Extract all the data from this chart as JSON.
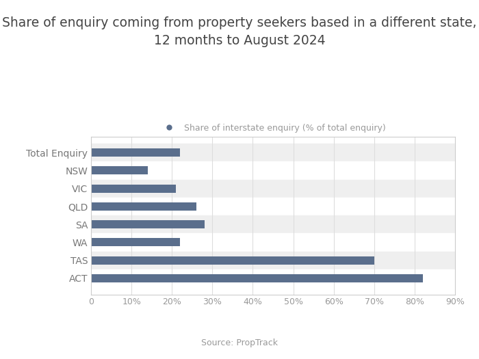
{
  "title_line1": "Share of enquiry coming from property seekers based in a different state,",
  "title_line2": "12 months to August 2024",
  "legend_label": "Share of interstate enquiry (% of total enquiry)",
  "source": "Source: PropTrack",
  "categories": [
    "Total Enquiry",
    "NSW",
    "VIC",
    "QLD",
    "SA",
    "WA",
    "TAS",
    "ACT"
  ],
  "values": [
    22,
    14,
    21,
    26,
    28,
    22,
    70,
    82
  ],
  "bar_color": "#5a6e8c",
  "bg_color_shaded": "#efefef",
  "bg_color_white": "#ffffff",
  "border_color": "#cccccc",
  "grid_color": "#dddddd",
  "xlim": [
    0,
    90
  ],
  "xticks": [
    0,
    10,
    20,
    30,
    40,
    50,
    60,
    70,
    80,
    90
  ],
  "tick_fontsize": 9,
  "label_fontsize": 10,
  "title_fontsize": 13.5,
  "legend_fontsize": 9,
  "source_fontsize": 9,
  "fig_bg": "#ffffff",
  "title_color": "#444444",
  "label_color": "#777777",
  "tick_color": "#999999"
}
